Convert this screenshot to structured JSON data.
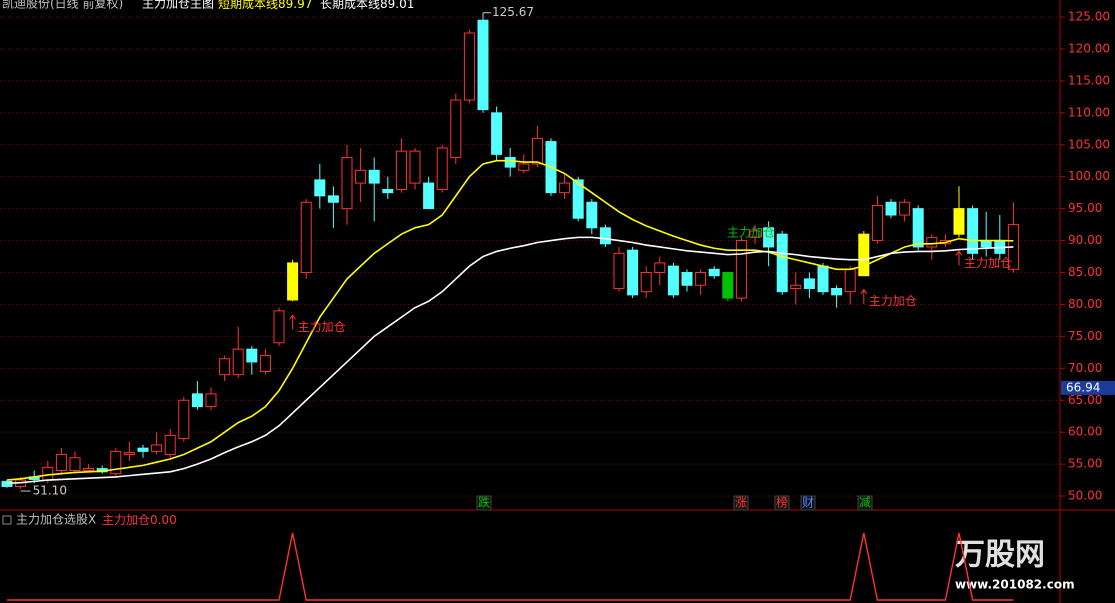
{
  "chart_data": [
    {
      "type": "candlestick",
      "title": "凯迪股份(日线 前复权)",
      "subtitle": "主力加仓主图",
      "open": [
        52.3,
        51.5,
        53,
        52.5,
        54,
        54,
        54,
        54.3,
        53.5,
        56.5,
        57.5,
        57,
        56.5,
        59,
        66,
        64,
        69,
        69,
        73,
        69.5,
        74,
        86.5,
        85,
        99.5,
        97,
        95,
        99,
        101,
        98,
        98,
        99,
        99,
        98,
        103,
        112,
        124.5,
        110,
        103,
        101,
        102,
        105.5,
        97.5,
        99.5,
        96,
        92,
        82.5,
        88.5,
        82,
        85,
        86,
        85,
        83,
        85.5,
        85,
        81,
        90.5,
        92,
        91,
        82.5,
        84,
        86,
        82.5,
        82,
        84.5,
        90,
        96,
        94,
        95,
        89,
        89.5,
        91,
        95,
        90,
        90,
        85.5
      ],
      "high": [
        52.5,
        53,
        54,
        55.5,
        57.5,
        57,
        55,
        54.8,
        57.5,
        58.5,
        58,
        60,
        60.5,
        65.5,
        68,
        67,
        72,
        76.5,
        73.5,
        73,
        79.5,
        87,
        96.5,
        102,
        98.5,
        105,
        104.5,
        103,
        100,
        106,
        104.5,
        100,
        105,
        113,
        123,
        125.67,
        111,
        104.5,
        103.5,
        108,
        106,
        100.5,
        100,
        96.5,
        92.5,
        89,
        89,
        86,
        87.5,
        86.5,
        85.5,
        85.5,
        86,
        85,
        90.5,
        92.5,
        93,
        91.5,
        85,
        85,
        86.5,
        83,
        86,
        91.5,
        97,
        96.5,
        96.5,
        95.5,
        91,
        91,
        98.5,
        95.5,
        94.5,
        94,
        96
      ],
      "low": [
        51.3,
        51.1,
        52,
        52,
        53.5,
        53.5,
        53.8,
        53.5,
        53,
        55.5,
        56,
        56.5,
        56,
        58.5,
        63.5,
        63.5,
        68,
        68.5,
        69,
        69,
        73.5,
        80.5,
        84,
        95,
        92,
        92.5,
        96,
        93,
        96.5,
        97.5,
        98,
        95,
        97.5,
        102,
        111.5,
        110,
        102.5,
        100,
        100.5,
        101.5,
        97,
        96.5,
        93,
        91,
        89,
        82,
        81,
        81,
        83,
        81,
        82,
        81.5,
        84,
        80.5,
        80.5,
        89.5,
        86,
        81.5,
        80,
        81,
        81.5,
        79.5,
        80,
        84.5,
        89.5,
        93.5,
        93,
        88.5,
        87,
        89,
        90.5,
        87,
        87.5,
        87,
        85
      ],
      "close": [
        51.5,
        52.5,
        52.6,
        54.5,
        56.5,
        56,
        54.3,
        53.8,
        57,
        56.8,
        57,
        58,
        59.5,
        65,
        64,
        66,
        71.5,
        73,
        71,
        72,
        79,
        80.7,
        96,
        97,
        96,
        103,
        101,
        99,
        97.5,
        104,
        104,
        95,
        104.5,
        112,
        122.5,
        110.5,
        103.5,
        101.5,
        102,
        106,
        97.5,
        99,
        93.5,
        92,
        89.5,
        88,
        81.5,
        85,
        86.5,
        81.5,
        83,
        85,
        84.5,
        81,
        90,
        91.5,
        89,
        82,
        83,
        82.5,
        82,
        81.5,
        85.5,
        91,
        95.5,
        94,
        96,
        89,
        90.5,
        90,
        95,
        88,
        89,
        88,
        92.5
      ],
      "up_color": "#ff3232",
      "down_color": "#54ffff",
      "highlight_colors": {
        "21": "#ffff00",
        "53": "#00c000",
        "63": "#ffff00",
        "70": "#ffff00"
      },
      "series": [
        {
          "name": "短期成本线",
          "color": "#ffff00",
          "values": [
            52.5,
            52.7,
            53,
            53.3,
            53.5,
            53.7,
            53.8,
            53.9,
            54.2,
            54.5,
            54.8,
            55.3,
            55.8,
            56.5,
            57.5,
            58.5,
            60,
            61.5,
            62.5,
            64,
            66.5,
            70,
            74,
            78,
            81,
            84,
            86,
            88,
            89.5,
            91,
            92,
            92.5,
            94,
            97,
            100,
            102,
            102.5,
            102.5,
            102.3,
            102.3,
            101.5,
            100.5,
            99,
            97.5,
            96,
            94.5,
            93.3,
            92.3,
            91.5,
            90.7,
            90,
            89.3,
            88.8,
            88.5,
            88.5,
            88.5,
            88.2,
            87.5,
            87,
            86.5,
            86,
            85.5,
            85.5,
            86,
            87,
            88,
            89,
            89.5,
            89.5,
            89.7,
            90.3,
            90,
            90,
            90,
            89.97
          ]
        },
        {
          "name": "长期成本线",
          "color": "#ffffff",
          "values": [
            52,
            52.1,
            52.3,
            52.5,
            52.6,
            52.7,
            52.8,
            52.9,
            53,
            53.2,
            53.4,
            53.6,
            53.8,
            54.3,
            55,
            55.8,
            56.8,
            57.7,
            58.5,
            59.5,
            61,
            63,
            65,
            67,
            69,
            71,
            73,
            75,
            76.5,
            78,
            79.5,
            80.5,
            82,
            84,
            86,
            87.5,
            88.3,
            88.8,
            89.2,
            89.7,
            90,
            90.3,
            90.5,
            90.5,
            90.3,
            90,
            89.7,
            89.3,
            89,
            88.7,
            88.4,
            88.2,
            88,
            87.8,
            87.9,
            88.2,
            88.3,
            88,
            87.8,
            87.5,
            87.3,
            87.1,
            87,
            87,
            87.5,
            88,
            88.2,
            88.3,
            88.3,
            88.4,
            88.6,
            88.7,
            88.8,
            88.9,
            89.01
          ]
        }
      ],
      "ylim": [
        48.6,
        126.1
      ],
      "yticks": [
        {
          "value": 50,
          "label": "50.00"
        },
        {
          "value": 55,
          "label": "55.00"
        },
        {
          "value": 60,
          "label": "60.00"
        },
        {
          "value": 65,
          "label": "65.00"
        },
        {
          "value": 70,
          "label": "70.00"
        },
        {
          "value": 75,
          "label": "75.00"
        },
        {
          "value": 80,
          "label": "80.00"
        },
        {
          "value": 85,
          "label": "85.00"
        },
        {
          "value": 90,
          "label": "90.00"
        },
        {
          "value": 95,
          "label": "95.00"
        },
        {
          "value": 100,
          "label": "100.00"
        },
        {
          "value": 105,
          "label": "105.00"
        },
        {
          "value": 110,
          "label": "110.00"
        },
        {
          "value": 115,
          "label": "115.00"
        },
        {
          "value": 120,
          "label": "120.00"
        },
        {
          "value": 125,
          "label": "125.00"
        }
      ],
      "grid": true,
      "high_marker": {
        "value": 125.67,
        "label": "125.67"
      },
      "low_marker": {
        "value": 51.1,
        "label": "51.10"
      },
      "current_price": 66.94,
      "signal_labels": [
        "主力加仓",
        "主力加仓",
        "主力加仓"
      ],
      "hold_label": "主力加仓",
      "events": [
        "跌",
        "涨",
        "榜",
        "财",
        "减"
      ]
    },
    {
      "type": "line",
      "title": "主力加仓选股X",
      "series": [
        {
          "name": "主力加仓",
          "color": "#ff3232",
          "values": [
            0,
            0,
            0,
            0,
            0,
            0,
            0,
            0,
            0,
            0,
            0,
            0,
            0,
            0,
            0,
            0,
            0,
            0,
            0,
            0,
            0,
            1,
            0,
            0,
            0,
            0,
            0,
            0,
            0,
            0,
            0,
            0,
            0,
            0,
            0,
            0,
            0,
            0,
            0,
            0,
            0,
            0,
            0,
            0,
            0,
            0,
            0,
            0,
            0,
            0,
            0,
            0,
            0,
            0,
            0,
            0,
            0,
            0,
            0,
            0,
            0,
            0,
            0,
            1,
            0,
            0,
            0,
            0,
            0,
            0,
            1,
            0,
            0,
            0,
            0
          ]
        }
      ],
      "legend_value": {
        "value": 0,
        "label": "0.00"
      },
      "ylim": [
        0,
        1
      ]
    }
  ],
  "logo": {
    "name": "万股网",
    "url": "www.201082.com"
  }
}
